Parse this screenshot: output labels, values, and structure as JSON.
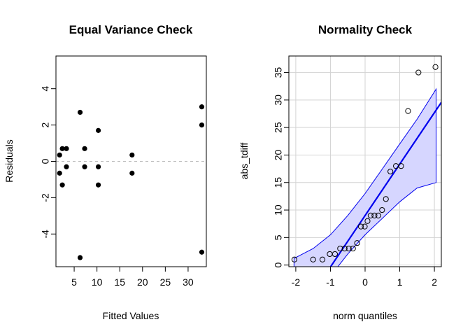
{
  "chart_data": [
    {
      "type": "scatter",
      "title": "Equal Variance Check",
      "xlabel": "Fitted Values",
      "ylabel": "Residuals",
      "xlim": [
        1.0,
        34.0
      ],
      "ylim": [
        -5.8,
        5.8
      ],
      "x_ticks": [
        5,
        10,
        15,
        20,
        25,
        30
      ],
      "y_ticks": [
        -4,
        -2,
        0,
        2,
        4
      ],
      "reference_line": {
        "y": 0,
        "style": "dashed",
        "color": "#bbbbbb"
      },
      "point_color": "#000000",
      "points": [
        {
          "x": 1.8,
          "y": 0.35
        },
        {
          "x": 1.8,
          "y": -0.65
        },
        {
          "x": 2.4,
          "y": 0.7
        },
        {
          "x": 2.4,
          "y": -1.3
        },
        {
          "x": 3.3,
          "y": 0.7
        },
        {
          "x": 3.3,
          "y": -0.3
        },
        {
          "x": 6.3,
          "y": 2.7
        },
        {
          "x": 6.3,
          "y": -5.3
        },
        {
          "x": 7.3,
          "y": 0.7
        },
        {
          "x": 7.3,
          "y": -0.3
        },
        {
          "x": 10.3,
          "y": 1.7
        },
        {
          "x": 10.3,
          "y": -0.3
        },
        {
          "x": 10.3,
          "y": -1.3
        },
        {
          "x": 17.7,
          "y": 0.35
        },
        {
          "x": 17.7,
          "y": -0.65
        },
        {
          "x": 33.0,
          "y": 3.0
        },
        {
          "x": 33.0,
          "y": 2.0
        },
        {
          "x": 33.0,
          "y": -5.0
        }
      ]
    },
    {
      "type": "scatter",
      "title": "Normality Check",
      "xlabel": "norm quantiles",
      "ylabel": "abs_tdiff",
      "xlim": [
        -2.2,
        2.2
      ],
      "ylim": [
        -0.3,
        38
      ],
      "x_ticks": [
        -2,
        -1,
        0,
        1,
        2
      ],
      "y_ticks": [
        0,
        5,
        10,
        15,
        20,
        25,
        30,
        35
      ],
      "grid": true,
      "line_color": "#0000ee",
      "band_color": "#d6d6ff",
      "reference_line": {
        "slope": 9.35,
        "intercept": 9.0
      },
      "confidence_band": {
        "x": [
          -2.05,
          -1.5,
          -1.0,
          -0.5,
          0,
          0.5,
          1.0,
          1.5,
          2.05
        ],
        "upper": [
          1.2,
          3.0,
          5.5,
          9.0,
          13.0,
          17.5,
          22.0,
          26.5,
          32.0
        ],
        "lower": [
          -5.0,
          -4.0,
          -2.0,
          2.0,
          5.5,
          8.5,
          11.5,
          14.0,
          15.0
        ]
      },
      "points": [
        {
          "x": -2.04,
          "y": 1
        },
        {
          "x": -1.5,
          "y": 1
        },
        {
          "x": -1.23,
          "y": 1
        },
        {
          "x": -1.02,
          "y": 2
        },
        {
          "x": -0.87,
          "y": 2
        },
        {
          "x": -0.72,
          "y": 3
        },
        {
          "x": -0.59,
          "y": 3
        },
        {
          "x": -0.47,
          "y": 3
        },
        {
          "x": -0.35,
          "y": 3
        },
        {
          "x": -0.23,
          "y": 4
        },
        {
          "x": -0.12,
          "y": 7
        },
        {
          "x": -0.01,
          "y": 7
        },
        {
          "x": 0.07,
          "y": 8
        },
        {
          "x": 0.16,
          "y": 9
        },
        {
          "x": 0.27,
          "y": 9
        },
        {
          "x": 0.38,
          "y": 9
        },
        {
          "x": 0.49,
          "y": 10
        },
        {
          "x": 0.6,
          "y": 12
        },
        {
          "x": 0.73,
          "y": 17
        },
        {
          "x": 0.89,
          "y": 18
        },
        {
          "x": 1.04,
          "y": 18
        },
        {
          "x": 1.24,
          "y": 28
        },
        {
          "x": 1.54,
          "y": 35
        },
        {
          "x": 2.03,
          "y": 36
        }
      ]
    }
  ]
}
